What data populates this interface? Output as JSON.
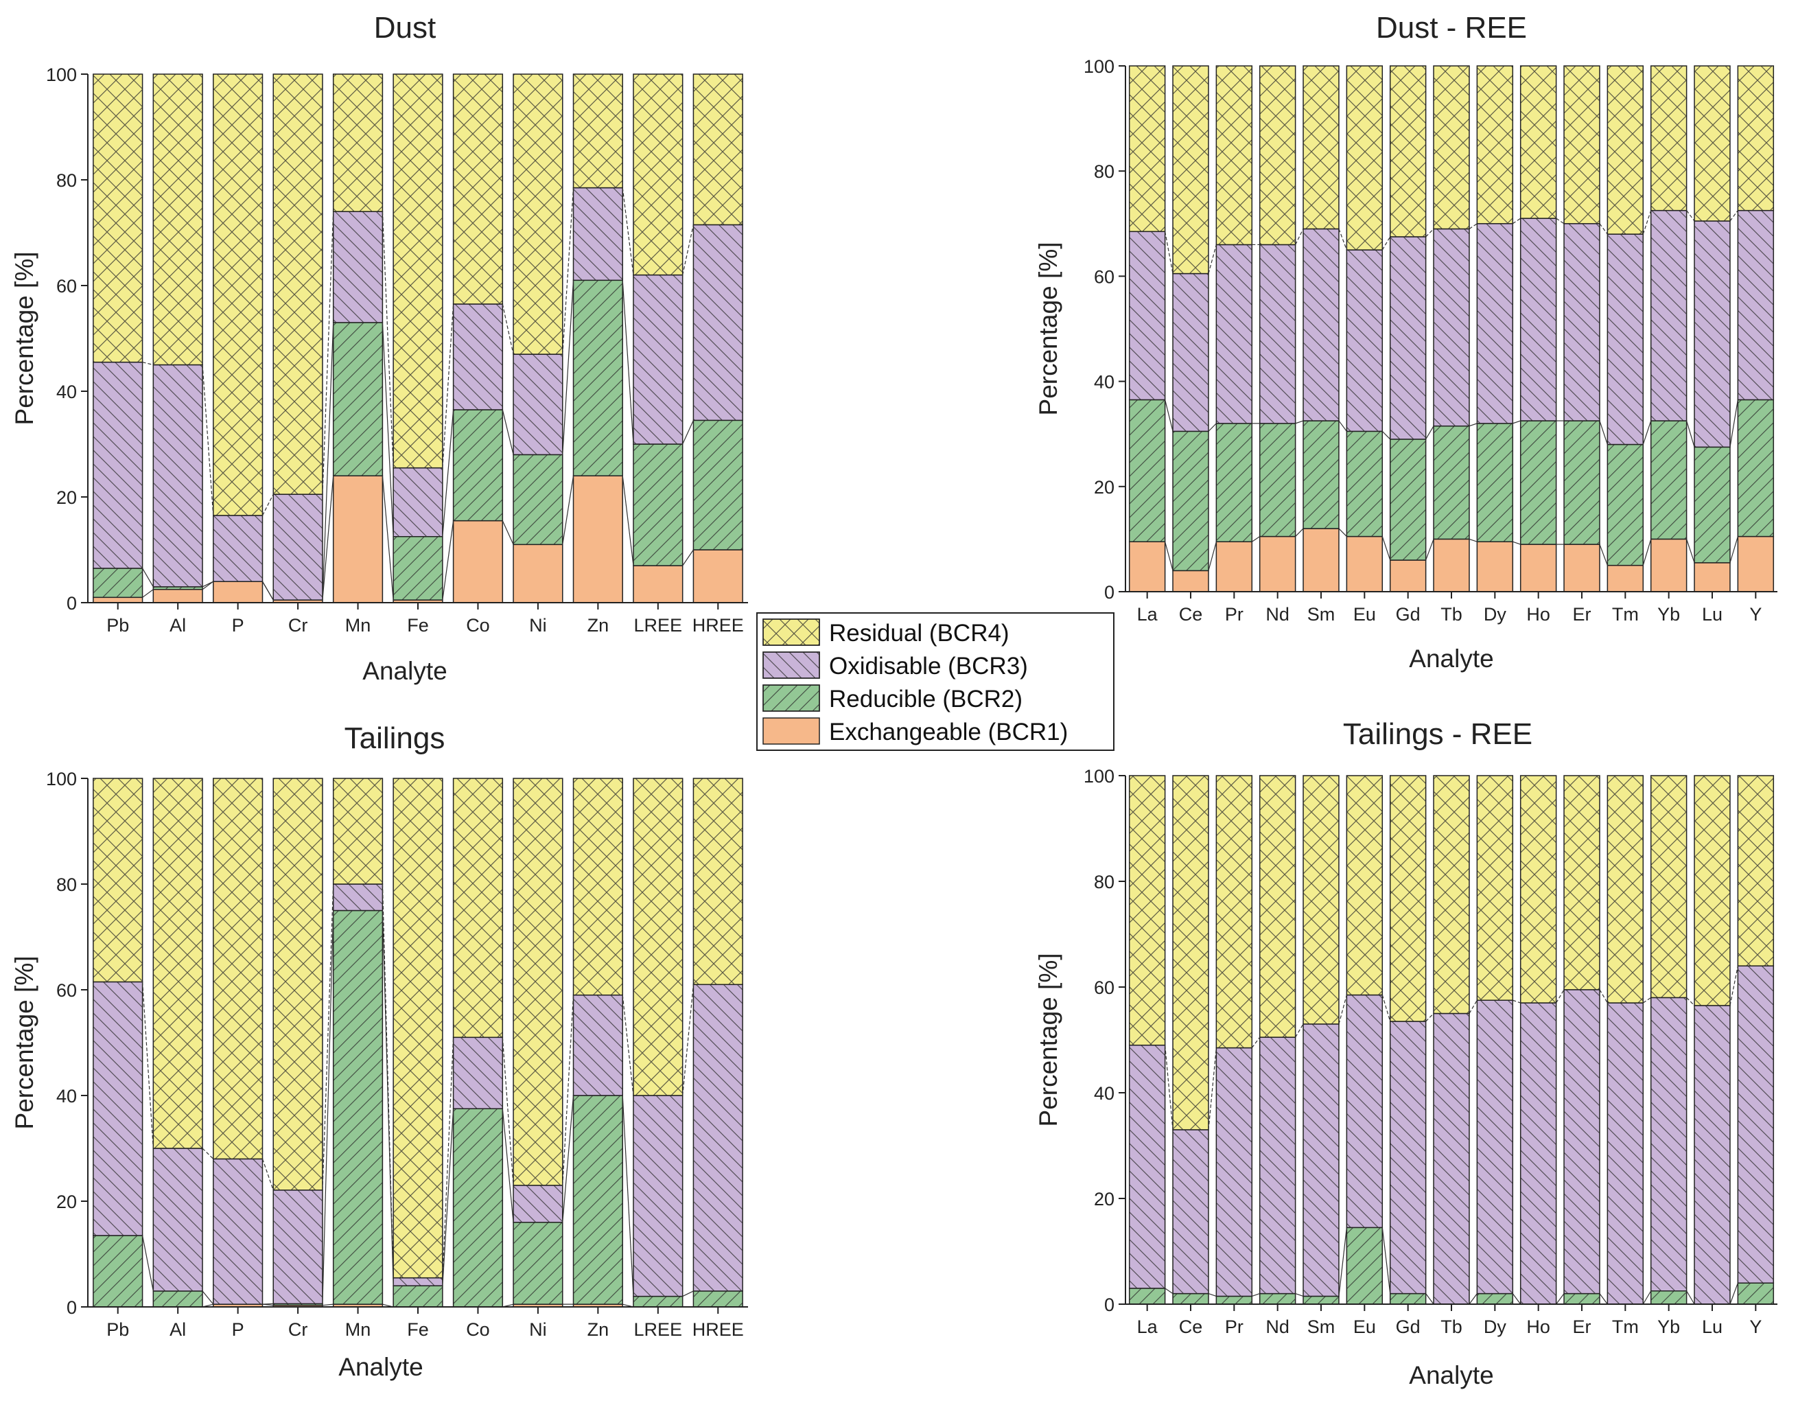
{
  "series_names": [
    "Residual (BCR4)",
    "Oxidisable (BCR3)",
    "Reducible (BCR2)",
    "Exchangeable (BCR1)"
  ],
  "colors": {
    "residual": "#f3ed8f",
    "oxidisable": "#c9b4d8",
    "reducible": "#93c795",
    "exchangeable": "#f6b88a",
    "hatch": "#2a2a2a",
    "border": "#222222"
  },
  "chart_data": [
    {
      "type": "bar",
      "stacked": true,
      "title": "Dust",
      "xlabel": "Analyte",
      "ylabel": "Percentage [%]",
      "ylim": [
        0,
        100
      ],
      "yticks": [
        "0",
        "20",
        "40",
        "60",
        "80",
        "100"
      ],
      "categories": [
        "Pb",
        "Al",
        "P",
        "Cr",
        "Mn",
        "Fe",
        "Co",
        "Ni",
        "Zn",
        "LREE",
        "HREE"
      ],
      "series": [
        {
          "name": "Exchangeable (BCR1)",
          "values": [
            1,
            2.5,
            4,
            0.5,
            24,
            0.5,
            15.5,
            11,
            24,
            7,
            10
          ]
        },
        {
          "name": "Reducible (BCR2)",
          "values": [
            5.5,
            0.5,
            0,
            0,
            29,
            12,
            21,
            17,
            37,
            23,
            24.5
          ]
        },
        {
          "name": "Oxidisable (BCR3)",
          "values": [
            39,
            42,
            12.5,
            20,
            21,
            13,
            20,
            19,
            17.5,
            32,
            37
          ]
        },
        {
          "name": "Residual (BCR4)",
          "values": [
            54.5,
            55,
            83.5,
            79.5,
            26,
            74.5,
            43.5,
            53,
            21.5,
            38,
            28.5
          ]
        }
      ]
    },
    {
      "type": "bar",
      "stacked": true,
      "title": "Dust - REE",
      "xlabel": "Analyte",
      "ylabel": "Percentage [%]",
      "ylim": [
        0,
        100
      ],
      "yticks": [
        "0",
        "20",
        "40",
        "60",
        "80",
        "100"
      ],
      "categories": [
        "La",
        "Ce",
        "Pr",
        "Nd",
        "Sm",
        "Eu",
        "Gd",
        "Tb",
        "Dy",
        "Ho",
        "Er",
        "Tm",
        "Yb",
        "Lu",
        "Y"
      ],
      "series": [
        {
          "name": "Exchangeable (BCR1)",
          "values": [
            9.5,
            4,
            9.5,
            10.5,
            12,
            10.5,
            6,
            10,
            9.5,
            9,
            9,
            5,
            10,
            5.5,
            10.5
          ]
        },
        {
          "name": "Reducible (BCR2)",
          "values": [
            27,
            26.5,
            22.5,
            21.5,
            20.5,
            20,
            23,
            21.5,
            22.5,
            23.5,
            23.5,
            23,
            22.5,
            22,
            26
          ]
        },
        {
          "name": "Oxidisable (BCR3)",
          "values": [
            32,
            30,
            34,
            34,
            36.5,
            34.5,
            38.5,
            37.5,
            38,
            38.5,
            37.5,
            40,
            40,
            43,
            36
          ]
        },
        {
          "name": "Residual (BCR4)",
          "values": [
            31.5,
            39.5,
            34,
            34,
            31,
            35,
            32.5,
            31,
            30,
            29,
            30,
            32,
            27.5,
            29.5,
            27.5
          ]
        }
      ]
    },
    {
      "type": "bar",
      "stacked": true,
      "title": "Tailings",
      "xlabel": "Analyte",
      "ylabel": "Percentage [%]",
      "ylim": [
        0,
        100
      ],
      "yticks": [
        "0",
        "20",
        "40",
        "60",
        "80",
        "100"
      ],
      "categories": [
        "Pb",
        "Al",
        "P",
        "Cr",
        "Mn",
        "Fe",
        "Co",
        "Ni",
        "Zn",
        "LREE",
        "HREE"
      ],
      "series": [
        {
          "name": "Exchangeable (BCR1)",
          "values": [
            0,
            0,
            0.5,
            0.3,
            0.5,
            0,
            0,
            0.5,
            0.5,
            0,
            0
          ]
        },
        {
          "name": "Reducible (BCR2)",
          "values": [
            13.5,
            3,
            0,
            0.3,
            74.5,
            4,
            37.5,
            15.5,
            39.5,
            2,
            3
          ]
        },
        {
          "name": "Oxidisable (BCR3)",
          "values": [
            48,
            27,
            27.5,
            21.5,
            5,
            1.5,
            13.5,
            7,
            19,
            38,
            58
          ]
        },
        {
          "name": "Residual (BCR4)",
          "values": [
            38.5,
            70,
            72,
            77.9,
            20,
            94.5,
            49,
            77,
            41,
            60,
            39
          ]
        }
      ]
    },
    {
      "type": "bar",
      "stacked": true,
      "title": "Tailings - REE",
      "xlabel": "Analyte",
      "ylabel": "Percentage [%]",
      "ylim": [
        0,
        100
      ],
      "yticks": [
        "0",
        "20",
        "40",
        "60",
        "80",
        "100"
      ],
      "categories": [
        "La",
        "Ce",
        "Pr",
        "Nd",
        "Sm",
        "Eu",
        "Gd",
        "Tb",
        "Dy",
        "Ho",
        "Er",
        "Tm",
        "Yb",
        "Lu",
        "Y"
      ],
      "series": [
        {
          "name": "Exchangeable (BCR1)",
          "values": [
            0,
            0,
            0,
            0,
            0,
            0,
            0,
            0,
            0,
            0,
            0,
            0,
            0,
            0,
            0
          ]
        },
        {
          "name": "Reducible (BCR2)",
          "values": [
            3,
            2,
            1.5,
            2,
            1.5,
            14.5,
            2,
            0,
            2,
            0,
            2,
            0,
            2.5,
            0,
            4
          ]
        },
        {
          "name": "Oxidisable (BCR3)",
          "values": [
            46,
            31,
            47,
            48.5,
            51.5,
            44,
            51.5,
            55,
            55.5,
            57,
            57.5,
            57,
            55.5,
            56.5,
            60
          ]
        },
        {
          "name": "Residual (BCR4)",
          "values": [
            51,
            67,
            51.5,
            49.5,
            47,
            41.5,
            46.5,
            45,
            42.5,
            43,
            40.5,
            43,
            42,
            43.5,
            36
          ]
        }
      ]
    }
  ]
}
